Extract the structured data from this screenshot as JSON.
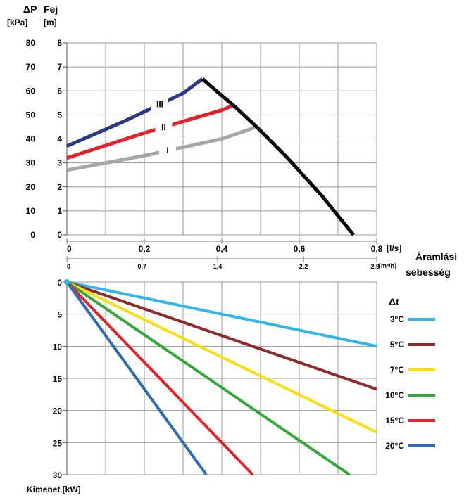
{
  "chart_data": [
    {
      "type": "line",
      "title": "",
      "ylabel_primary": "ΔP",
      "ylabel_primary_unit": "[kPa]",
      "ylabel_secondary": "Fej",
      "ylabel_secondary_unit": "[m]",
      "xlabel": "Áramlási sebesség",
      "x_unit_primary": "[l/s]",
      "x_unit_secondary": "[m³/h]",
      "xlim": [
        0,
        0.8
      ],
      "ylim_head": [
        0,
        8
      ],
      "ylim_pressure": [
        0,
        80
      ],
      "grid": true,
      "x_ticks_primary": [
        "0",
        "0,2",
        "0,4",
        "0,6",
        "0,8"
      ],
      "x_ticks_primary_values": [
        0,
        0.2,
        0.4,
        0.6,
        0.8
      ],
      "x_ticks_secondary": [
        "0",
        "0,7",
        "1,4",
        "2,2",
        "2,9"
      ],
      "x_ticks_secondary_values": [
        0,
        0.194,
        0.389,
        0.611,
        0.8
      ],
      "y_ticks_head": [
        "0",
        "1",
        "2",
        "3",
        "4",
        "5",
        "6",
        "7",
        "8"
      ],
      "y_ticks_pressure": [
        "0",
        "10",
        "20",
        "30",
        "40",
        "50",
        "60",
        "70",
        "80"
      ],
      "series": [
        {
          "name": "I",
          "color": "#a6a6a6",
          "x": [
            0,
            0.2,
            0.4,
            0.49
          ],
          "y": [
            2.7,
            3.3,
            4.0,
            4.5
          ],
          "label_at": 0.26
        },
        {
          "name": "II",
          "color": "#e2232a",
          "x": [
            0,
            0.2,
            0.4,
            0.43
          ],
          "y": [
            3.2,
            4.25,
            5.2,
            5.4
          ],
          "label_at": 0.25
        },
        {
          "name": "III",
          "color": "#2b3a7f",
          "x": [
            0,
            0.15,
            0.3,
            0.35
          ],
          "y": [
            3.7,
            4.75,
            5.9,
            6.5
          ],
          "label_at": 0.24
        },
        {
          "name": "",
          "color": "#000000",
          "x": [
            0.35,
            0.4,
            0.43,
            0.49,
            0.57,
            0.66,
            0.74
          ],
          "y": [
            6.5,
            5.8,
            5.4,
            4.5,
            3.2,
            1.6,
            0
          ]
        }
      ]
    },
    {
      "type": "line",
      "title": "",
      "ylabel": "Kimenet [kW]",
      "legend_title": "Δt",
      "legend_position": "right",
      "xlim": [
        0,
        0.8
      ],
      "ylim": [
        0,
        30
      ],
      "y_inverted": true,
      "grid": true,
      "y_ticks": [
        "0",
        "5",
        "10",
        "15",
        "20",
        "25",
        "30"
      ],
      "series": [
        {
          "name": "3°C",
          "color": "#33b5e5",
          "x": [
            0,
            0.8
          ],
          "y": [
            0,
            10.0
          ]
        },
        {
          "name": "5°C",
          "color": "#8b2c2c",
          "x": [
            0,
            0.8
          ],
          "y": [
            0,
            16.7
          ]
        },
        {
          "name": "7°C",
          "color": "#f5e014",
          "x": [
            0,
            0.8
          ],
          "y": [
            0,
            23.4
          ]
        },
        {
          "name": "10°C",
          "color": "#34a838",
          "x": [
            0,
            0.73
          ],
          "y": [
            0,
            30.0
          ]
        },
        {
          "name": "15°C",
          "color": "#e2232a",
          "x": [
            0,
            0.48
          ],
          "y": [
            0,
            30.0
          ]
        },
        {
          "name": "20°C",
          "color": "#2e6bb3",
          "x": [
            0,
            0.36
          ],
          "y": [
            0,
            30.0
          ]
        }
      ]
    }
  ]
}
